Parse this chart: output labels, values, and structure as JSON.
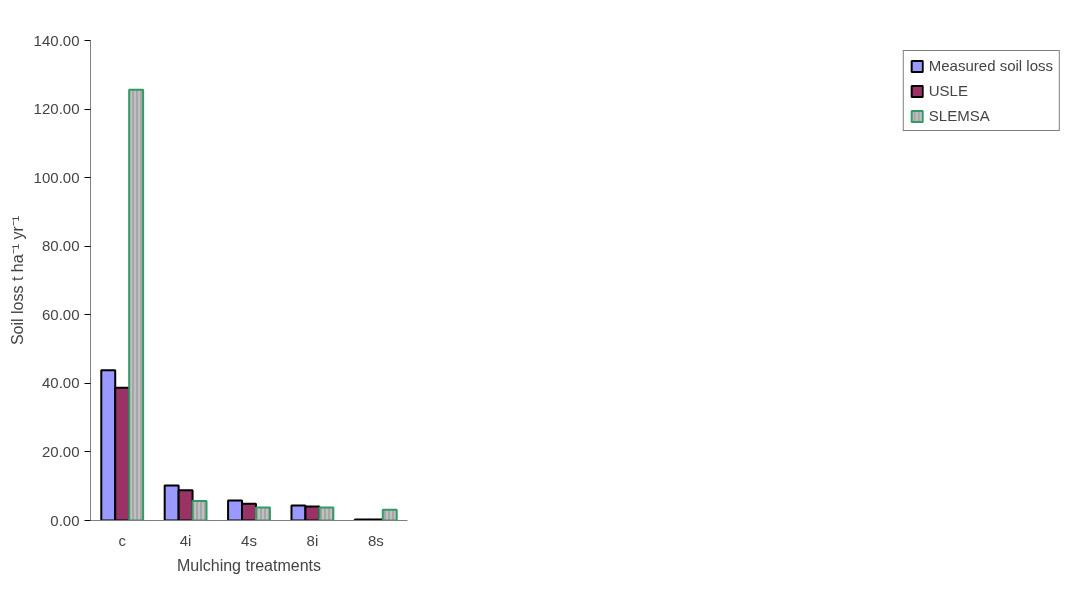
{
  "chart_data": {
    "type": "bar",
    "xlabel": "Mulching treatments",
    "ylabel": "Soil loss t ha⁻¹ yr⁻¹",
    "categories": [
      "c",
      "4i",
      "4s",
      "8i",
      "8s"
    ],
    "series": [
      {
        "name": "Measured soil loss",
        "color": "#9999ff",
        "values": [
          43.8,
          10.2,
          5.8,
          4.4,
          0.3
        ]
      },
      {
        "name": "USLE",
        "color": "#993366",
        "values": [
          38.7,
          8.8,
          4.9,
          4.1,
          0.3
        ]
      },
      {
        "name": "SLEMSA",
        "color": "#a6a6a6",
        "values": [
          125.6,
          5.7,
          3.8,
          3.8,
          3.1
        ]
      }
    ],
    "ylim": [
      0,
      140
    ],
    "yticks": [
      {
        "value": 0,
        "label": "0.00"
      },
      {
        "value": 20,
        "label": "20.00"
      },
      {
        "value": 40,
        "label": "40.00"
      },
      {
        "value": 60,
        "label": "60.00"
      },
      {
        "value": 80,
        "label": "80.00"
      },
      {
        "value": 100,
        "label": "100.00"
      },
      {
        "value": 120,
        "label": "120.00"
      },
      {
        "value": 140,
        "label": "140.00"
      }
    ],
    "grid": false,
    "legend": "right"
  }
}
